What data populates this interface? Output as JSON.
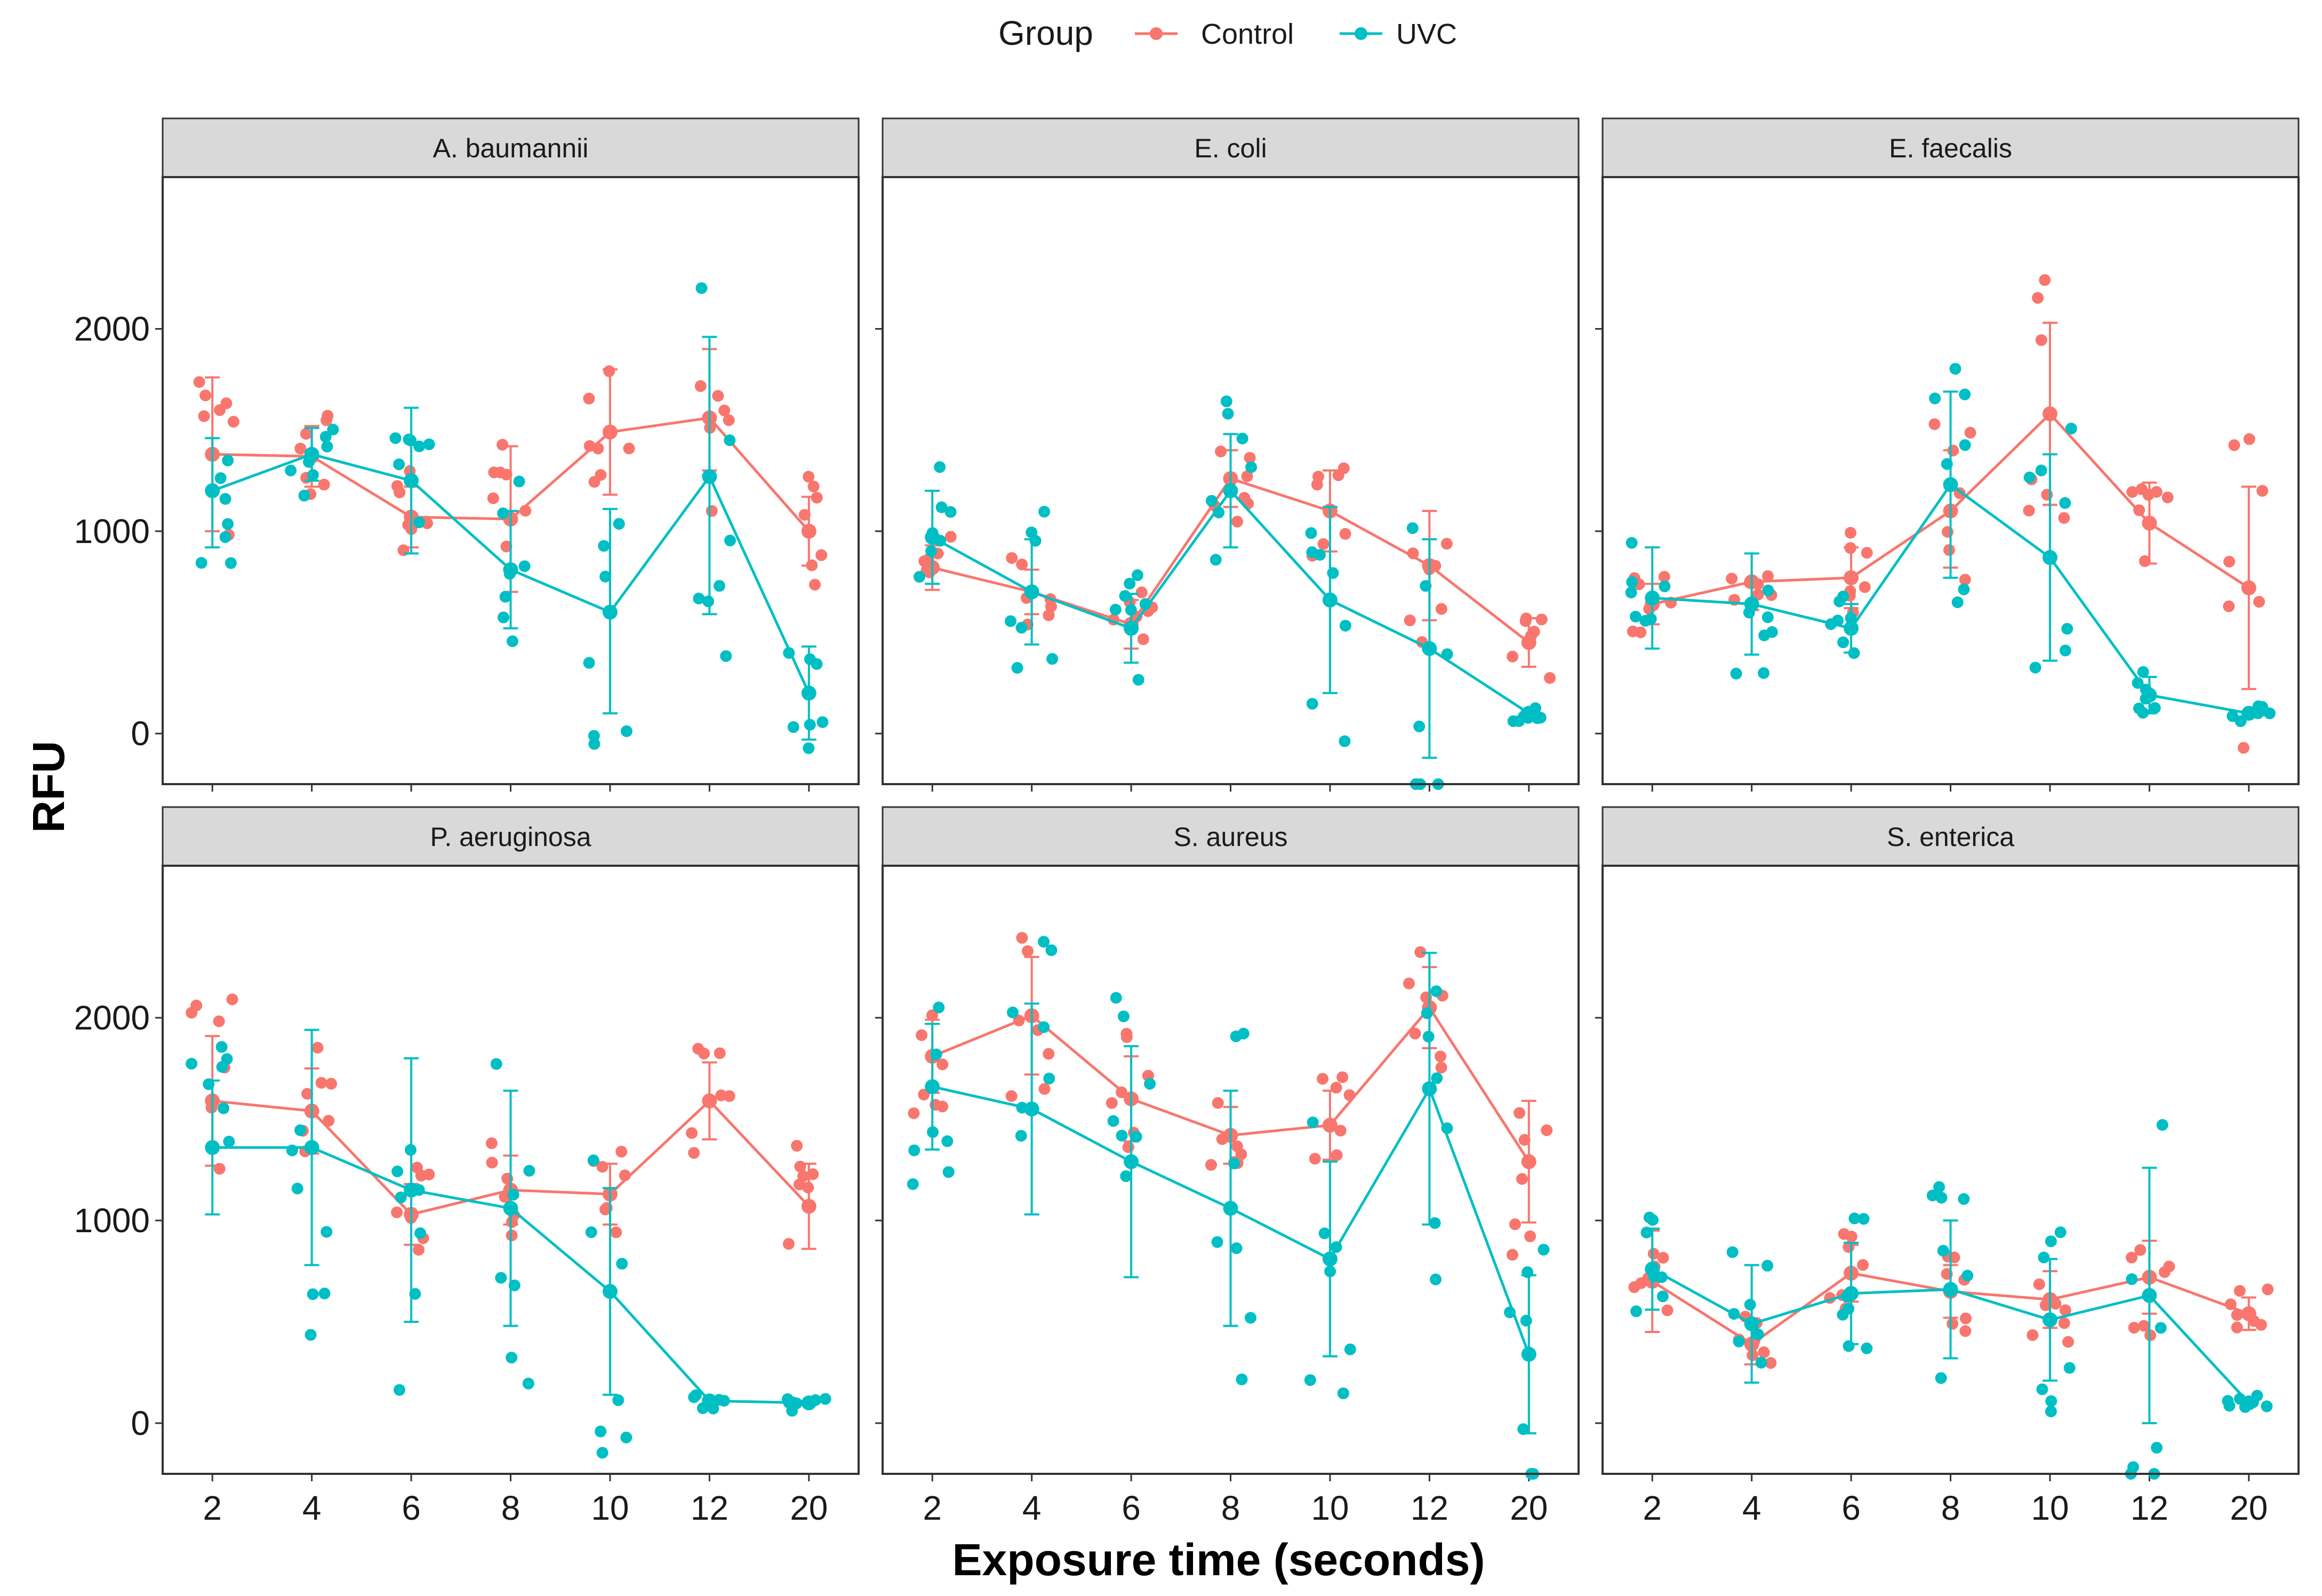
{
  "chart_data": {
    "type": "line",
    "facets": [
      "A. baumannii",
      "E. coli",
      "E. faecalis",
      "P. aeruginosa",
      "S. aureus",
      "S. enterica"
    ],
    "x_categories": [
      "2",
      "4",
      "6",
      "8",
      "10",
      "12",
      "20"
    ],
    "xlabel": "Exposure time (seconds)",
    "ylabel": "RFU",
    "y_ticks": [
      "0",
      "1000",
      "2000"
    ],
    "ylim": [
      -250,
      2750
    ],
    "legend": {
      "title": "Group",
      "position": "top",
      "entries": [
        {
          "name": "Control",
          "color": "#F8766D"
        },
        {
          "name": "UVC",
          "color": "#00BFC4"
        }
      ]
    },
    "panels": [
      {
        "name": "A. baumannii",
        "series": [
          {
            "name": "Control",
            "mean": [
              1380,
              1370,
              1070,
              1060,
              1490,
              1560,
              1000
            ],
            "lo": [
              1000,
              1220,
              920,
              700,
              1180,
              1300,
              830
            ],
            "hi": [
              1760,
              1520,
              1220,
              1420,
              1800,
              1900,
              1170
            ]
          },
          {
            "name": "UVC",
            "mean": [
              1200,
              1380,
              1250,
              810,
              600,
              1270,
              200
            ],
            "lo": [
              920,
              1250,
              890,
              520,
              100,
              590,
              -30
            ],
            "hi": [
              1460,
              1510,
              1610,
              1100,
              1110,
              1960,
              430
            ]
          }
        ]
      },
      {
        "name": "E. coli",
        "series": [
          {
            "name": "Control",
            "mean": [
              820,
              700,
              540,
              1260,
              1100,
              830,
              450
            ],
            "lo": [
              710,
              590,
              420,
              1120,
              900,
              560,
              330
            ],
            "hi": [
              930,
              810,
              660,
              1400,
              1300,
              1100,
              570
            ]
          },
          {
            "name": "UVC",
            "mean": [
              970,
              700,
              520,
              1200,
              660,
              420,
              100
            ],
            "lo": [
              740,
              440,
              350,
              920,
              200,
              -120,
              90
            ],
            "hi": [
              1200,
              960,
              690,
              1480,
              1120,
              960,
              110
            ]
          }
        ]
      },
      {
        "name": "E. faecalis",
        "series": [
          {
            "name": "Control",
            "mean": [
              640,
              750,
              770,
              1100,
              1580,
              1040,
              720
            ],
            "lo": [
              540,
              610,
              620,
              820,
              1130,
              840,
              220
            ],
            "hi": [
              740,
              890,
              920,
              1400,
              2030,
              1240,
              1220
            ]
          },
          {
            "name": "UVC",
            "mean": [
              670,
              640,
              520,
              1230,
              870,
              190,
              100
            ],
            "lo": [
              420,
              390,
              400,
              770,
              360,
              100,
              90
            ],
            "hi": [
              920,
              890,
              640,
              1690,
              1380,
              280,
              110
            ]
          }
        ]
      },
      {
        "name": "P. aeruginosa",
        "series": [
          {
            "name": "Control",
            "mean": [
              1590,
              1540,
              1030,
              1150,
              1130,
              1590,
              1070
            ],
            "lo": [
              1270,
              1330,
              880,
              980,
              980,
              1400,
              860
            ],
            "hi": [
              1910,
              1750,
              1180,
              1320,
              1280,
              1780,
              1280
            ]
          },
          {
            "name": "UVC",
            "mean": [
              1360,
              1360,
              1150,
              1060,
              650,
              110,
              100
            ],
            "lo": [
              1030,
              780,
              500,
              480,
              140,
              100,
              90
            ],
            "hi": [
              1690,
              1940,
              1800,
              1640,
              1160,
              120,
              110
            ]
          }
        ]
      },
      {
        "name": "S. aureus",
        "series": [
          {
            "name": "Control",
            "mean": [
              1810,
              2010,
              1600,
              1420,
              1470,
              2050,
              1290
            ],
            "lo": [
              1630,
              1720,
              1390,
              1280,
              1300,
              1850,
              990
            ],
            "hi": [
              1990,
              2300,
              1810,
              1560,
              1640,
              2250,
              1590
            ]
          },
          {
            "name": "UVC",
            "mean": [
              1660,
              1550,
              1290,
              1060,
              810,
              1650,
              340
            ],
            "lo": [
              1350,
              1030,
              720,
              480,
              330,
              980,
              -50
            ],
            "hi": [
              1970,
              2070,
              1860,
              1640,
              1290,
              2320,
              730
            ]
          }
        ]
      },
      {
        "name": "S. enterica",
        "series": [
          {
            "name": "Control",
            "mean": [
              700,
              390,
              740,
              650,
              610,
              720,
              540
            ],
            "lo": [
              450,
              290,
              600,
              520,
              470,
              540,
              460
            ],
            "hi": [
              950,
              490,
              880,
              780,
              750,
              900,
              620
            ]
          },
          {
            "name": "UVC",
            "mean": [
              760,
              490,
              640,
              660,
              510,
              630,
              100
            ],
            "lo": [
              560,
              200,
              390,
              320,
              210,
              0,
              90
            ],
            "hi": [
              960,
              780,
              890,
              1000,
              810,
              1260,
              110
            ]
          }
        ]
      }
    ]
  }
}
